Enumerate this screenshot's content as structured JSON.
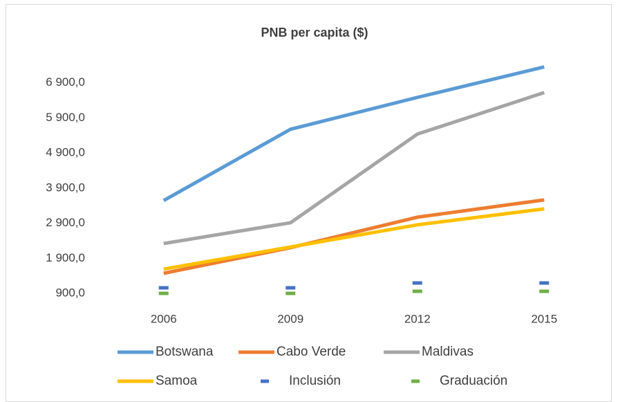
{
  "chart_data": {
    "type": "line",
    "title": "PNB per capita ($)",
    "categories": [
      "2006",
      "2009",
      "2012",
      "2015"
    ],
    "series": [
      {
        "name": "Botswana",
        "color": "#5b9bd5",
        "values": [
          3545,
          5577,
          6485,
          7353
        ]
      },
      {
        "name": "Cabo Verde",
        "color": "#ed7d31",
        "values": [
          1472,
          2202,
          3071,
          3564
        ]
      },
      {
        "name": "Maldivas",
        "color": "#a5a5a5",
        "values": [
          2321,
          2913,
          5439,
          6623
        ]
      },
      {
        "name": "Samoa",
        "color": "#ffc000",
        "values": [
          1591,
          2222,
          2854,
          3308
        ]
      },
      {
        "name": "Inclusión",
        "color": "#4472c4",
        "marker": "dash",
        "values": [
          1058,
          1058,
          1196,
          1196
        ]
      },
      {
        "name": "Graduación",
        "color": "#70ad47",
        "marker": "dash",
        "values": [
          900,
          900,
          959,
          959
        ]
      }
    ],
    "ylim": [
      900,
      7900
    ],
    "yticks": [
      {
        "value": 900,
        "label": "900,0"
      },
      {
        "value": 1900,
        "label": "1 900,0"
      },
      {
        "value": 2900,
        "label": "2 900,0"
      },
      {
        "value": 3900,
        "label": "3 900,0"
      },
      {
        "value": 4900,
        "label": "4 900,0"
      },
      {
        "value": 5900,
        "label": "5 900,0"
      },
      {
        "value": 6900,
        "label": "6 900,0"
      }
    ],
    "grid": false,
    "legend": "bottom"
  }
}
